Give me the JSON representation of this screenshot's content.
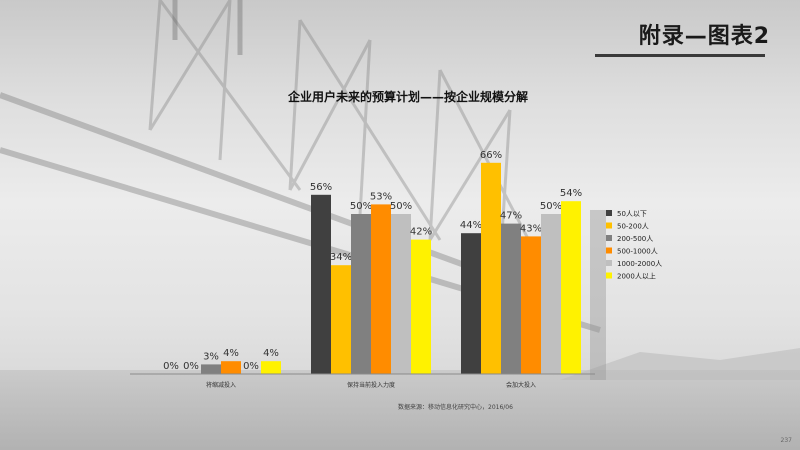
{
  "header": {
    "title": "附录—图表2"
  },
  "footer": {
    "source": "数据来源：移动信息化研究中心，2016/06",
    "page_number": "237"
  },
  "chart_data": {
    "type": "bar",
    "title": "企业用户未来的预算计划——按企业规模分解",
    "categories": [
      "将缩减投入",
      "保持当前投入力度",
      "会加大投入"
    ],
    "series": [
      {
        "name": "50人以下",
        "color": "#404040",
        "values": [
          0,
          56,
          44
        ]
      },
      {
        "name": "50-200人",
        "color": "#FFC000",
        "values": [
          0,
          34,
          66
        ]
      },
      {
        "name": "200-500人",
        "color": "#808080",
        "values": [
          3,
          50,
          47
        ]
      },
      {
        "name": "500-1000人",
        "color": "#FF8C00",
        "values": [
          4,
          53,
          43
        ]
      },
      {
        "name": "1000-2000人",
        "color": "#BFBFBF",
        "values": [
          0,
          50,
          50
        ]
      },
      {
        "name": "2000人以上",
        "color": "#FFF200",
        "values": [
          4,
          42,
          54
        ]
      }
    ],
    "value_suffix": "%",
    "ylim": [
      0,
      70
    ],
    "legend_position": "right",
    "grid": false
  }
}
